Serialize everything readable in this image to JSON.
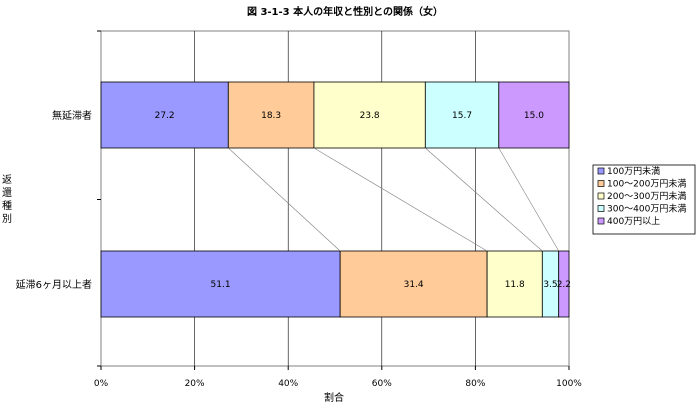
{
  "chart_data": {
    "type": "bar",
    "orientation": "horizontal",
    "stacked": "percent",
    "title": "図 3-1-3  本人の年収と性別との関係（女）",
    "xlabel": "割合",
    "ylabel": "返還種別",
    "categories": [
      "無延滞者",
      "延滞6ヶ月以上者"
    ],
    "xlim": [
      0,
      100
    ],
    "xticks": [
      "0%",
      "20%",
      "40%",
      "60%",
      "80%",
      "100%"
    ],
    "grid": true,
    "legend_position": "right",
    "series": [
      {
        "name": "100万円未満",
        "values": [
          27.2,
          51.1
        ],
        "labels": [
          "27.2",
          "51.1"
        ],
        "color": "#9999ff"
      },
      {
        "name": "100～200万円未満",
        "values": [
          18.3,
          31.4
        ],
        "labels": [
          "18.3",
          "31.4"
        ],
        "color": "#ffcc99"
      },
      {
        "name": "200～300万円未満",
        "values": [
          23.8,
          11.8
        ],
        "labels": [
          "23.8",
          "11.8"
        ],
        "color": "#ffffcc"
      },
      {
        "name": "300～400万円未満",
        "values": [
          15.7,
          3.5
        ],
        "labels": [
          "15.7",
          "3.5"
        ],
        "color": "#ccffff"
      },
      {
        "name": "400万円以上",
        "values": [
          15.0,
          2.2
        ],
        "labels": [
          "15.0",
          "2.2"
        ],
        "color": "#cc99ff"
      }
    ]
  }
}
